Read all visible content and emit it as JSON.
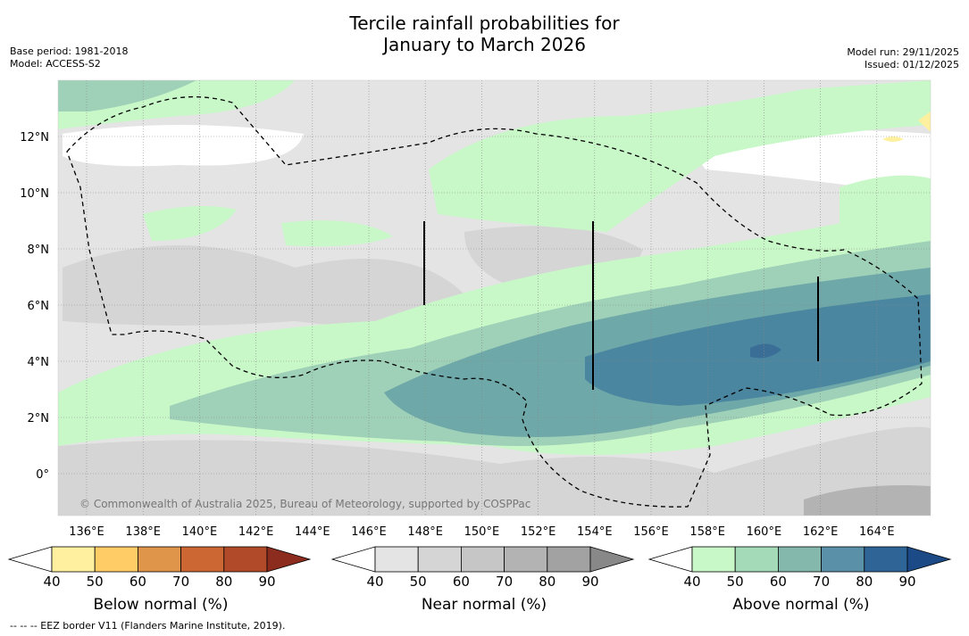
{
  "title_line1": "Tercile rainfall probabilities for",
  "title_line2": "January to March 2026",
  "meta_left": {
    "base_period": "Base period: 1981-2018",
    "model": "Model: ACCESS-S2"
  },
  "meta_right": {
    "model_run": "Model run: 29/11/2025",
    "issued": "Issued: 01/12/2025"
  },
  "map": {
    "lon_ticks": [
      "136°E",
      "138°E",
      "140°E",
      "142°E",
      "144°E",
      "146°E",
      "148°E",
      "150°E",
      "152°E",
      "154°E",
      "156°E",
      "158°E",
      "160°E",
      "162°E",
      "164°E"
    ],
    "lat_ticks": [
      "12°N",
      "10°N",
      "8°N",
      "6°N",
      "4°N",
      "2°N",
      "0°"
    ],
    "copyright": "© Commonwealth of Australia 2025, Bureau of Meteorology, supported by COSPPac",
    "colors": {
      "near40": "#e4e4e4",
      "near50": "#d5d5d5",
      "near60": "#c6c6c6",
      "near70": "#b3b3b3",
      "above40": "#c8f8c8",
      "above50": "#9fd0b8",
      "above60": "#6fa8a8",
      "above70": "#4a86a0",
      "above80": "#3a6e96",
      "below40": "#fff0a0"
    }
  },
  "colorbars": {
    "below": {
      "label": "Below normal (%)",
      "ticks": [
        "40",
        "50",
        "60",
        "70",
        "80",
        "90"
      ],
      "colors": [
        "#ffffff",
        "#fff0a0",
        "#ffcc66",
        "#e0964a",
        "#cc6633",
        "#b04a28",
        "#8c2c1e"
      ]
    },
    "near": {
      "label": "Near normal (%)",
      "ticks": [
        "40",
        "50",
        "60",
        "70",
        "80",
        "90"
      ],
      "colors": [
        "#ffffff",
        "#e4e4e4",
        "#d5d5d5",
        "#c6c6c6",
        "#b3b3b3",
        "#a2a2a2",
        "#888888"
      ]
    },
    "above": {
      "label": "Above normal (%)",
      "ticks": [
        "40",
        "50",
        "60",
        "70",
        "80",
        "90"
      ],
      "colors": [
        "#ffffff",
        "#c8f8c8",
        "#a4dab8",
        "#84b8ac",
        "#5a90a8",
        "#2f6496",
        "#1c4a86"
      ]
    }
  },
  "footnote": "--  --  -- EEZ border V11 (Flanders Marine Institute, 2019)."
}
